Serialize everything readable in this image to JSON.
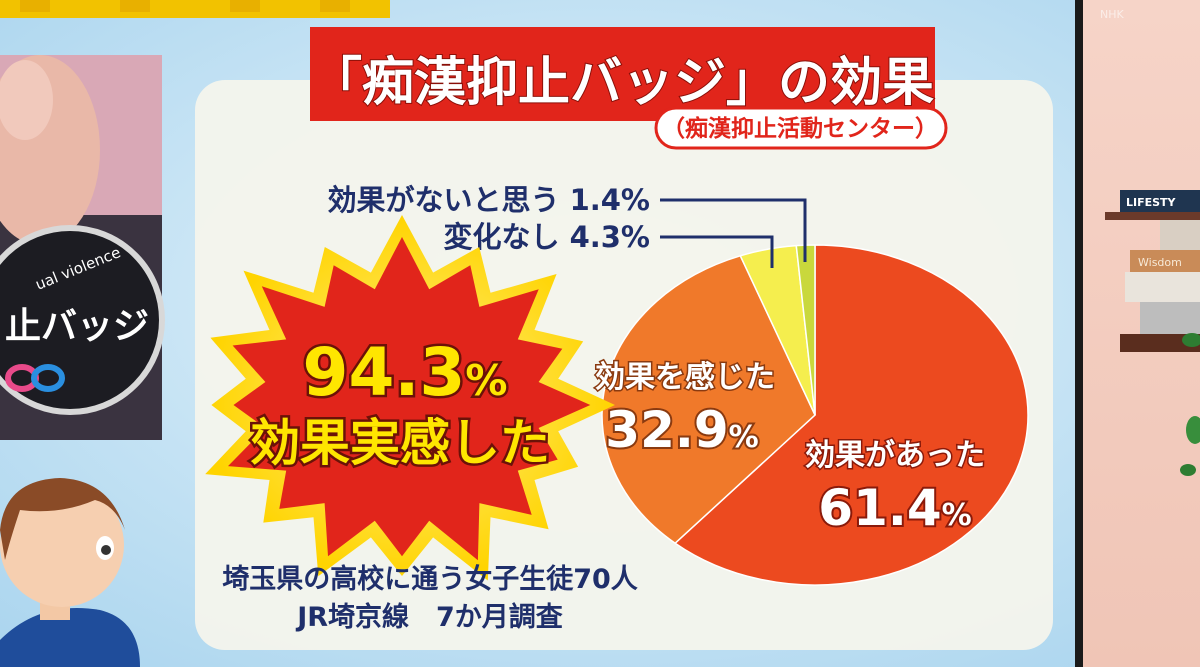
{
  "header": {
    "title": "「痴漢抑止バッジ」の効果",
    "source": "（痴漢抑止活動センター）"
  },
  "badge": {
    "text_en": "ual violence",
    "text_jp": "止バッジ"
  },
  "tv_logo": "NHK",
  "books": [
    "LIFESTY",
    "Wisdom"
  ],
  "burst": {
    "value": "94.3",
    "unit": "%",
    "caption": "効果実感した"
  },
  "chart_data": {
    "type": "pie",
    "slices": [
      {
        "label": "効果があった",
        "value": 61.4,
        "display": "61.4",
        "unit": "%",
        "color": "#ec4a1f"
      },
      {
        "label": "効果を感じた",
        "value": 32.9,
        "display": "32.9",
        "unit": "%",
        "color": "#f0792a"
      },
      {
        "label": "変化なし",
        "value": 4.3,
        "display": "4.3%",
        "color": "#f5ee4e"
      },
      {
        "label": "効果がないと思う",
        "value": 1.4,
        "display": "1.4%",
        "color": "#c9d83c"
      }
    ]
  },
  "footnote": {
    "line1": "埼玉県の高校に通う女子生徒70人",
    "line2": "JR埼京線　7か月調査"
  },
  "colors": {
    "red": "#e1251b",
    "navy": "#1f2f6b",
    "panel": "#f3f3ea",
    "bg": "#bfe0f2"
  }
}
